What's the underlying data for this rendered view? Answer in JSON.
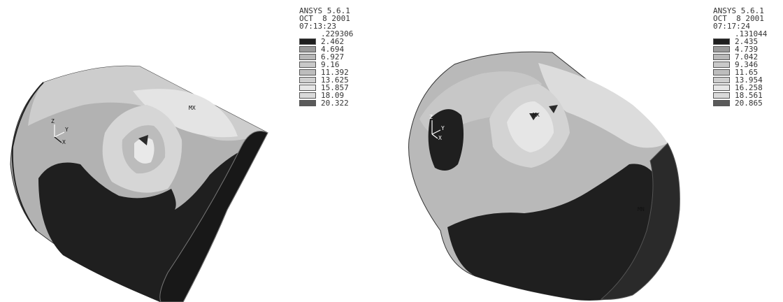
{
  "plots": [
    {
      "header": {
        "program": "ANSYS 5.6.1",
        "date": "OCT  8 2001",
        "time": "07:13:23"
      },
      "min_value": ".229306",
      "levels": [
        {
          "label": "2.462",
          "color": "#1e1e1e"
        },
        {
          "label": "4.694",
          "color": "#9a9a9a"
        },
        {
          "label": "6.927",
          "color": "#b8b8b8"
        },
        {
          "label": "9.16",
          "color": "#c9c9c9"
        },
        {
          "label": "11.392",
          "color": "#bdbdbd"
        },
        {
          "label": "13.625",
          "color": "#cecece"
        },
        {
          "label": "15.857",
          "color": "#e6e6e6"
        },
        {
          "label": "18.09",
          "color": "#dadada"
        },
        {
          "label": "20.322",
          "color": "#5a5a5a"
        }
      ],
      "max_marker": "MX",
      "triad": {
        "z": "Z",
        "y": "Y",
        "x": "X"
      }
    },
    {
      "header": {
        "program": "ANSYS 5.6.1",
        "date": "OCT  8 2001",
        "time": "07:17:24"
      },
      "min_value": ".131044",
      "levels": [
        {
          "label": "2.435",
          "color": "#1e1e1e"
        },
        {
          "label": "4.739",
          "color": "#9a9a9a"
        },
        {
          "label": "7.042",
          "color": "#b8b8b8"
        },
        {
          "label": "9.346",
          "color": "#c9c9c9"
        },
        {
          "label": "11.65",
          "color": "#bdbdbd"
        },
        {
          "label": "13.954",
          "color": "#cecece"
        },
        {
          "label": "16.258",
          "color": "#e6e6e6"
        },
        {
          "label": "18.561",
          "color": "#dadada"
        },
        {
          "label": "20.865",
          "color": "#5a5a5a"
        }
      ],
      "max_marker": "MX",
      "min_marker": "MN",
      "triad": {
        "z": "Z",
        "y": "Y",
        "x": "X"
      }
    }
  ]
}
